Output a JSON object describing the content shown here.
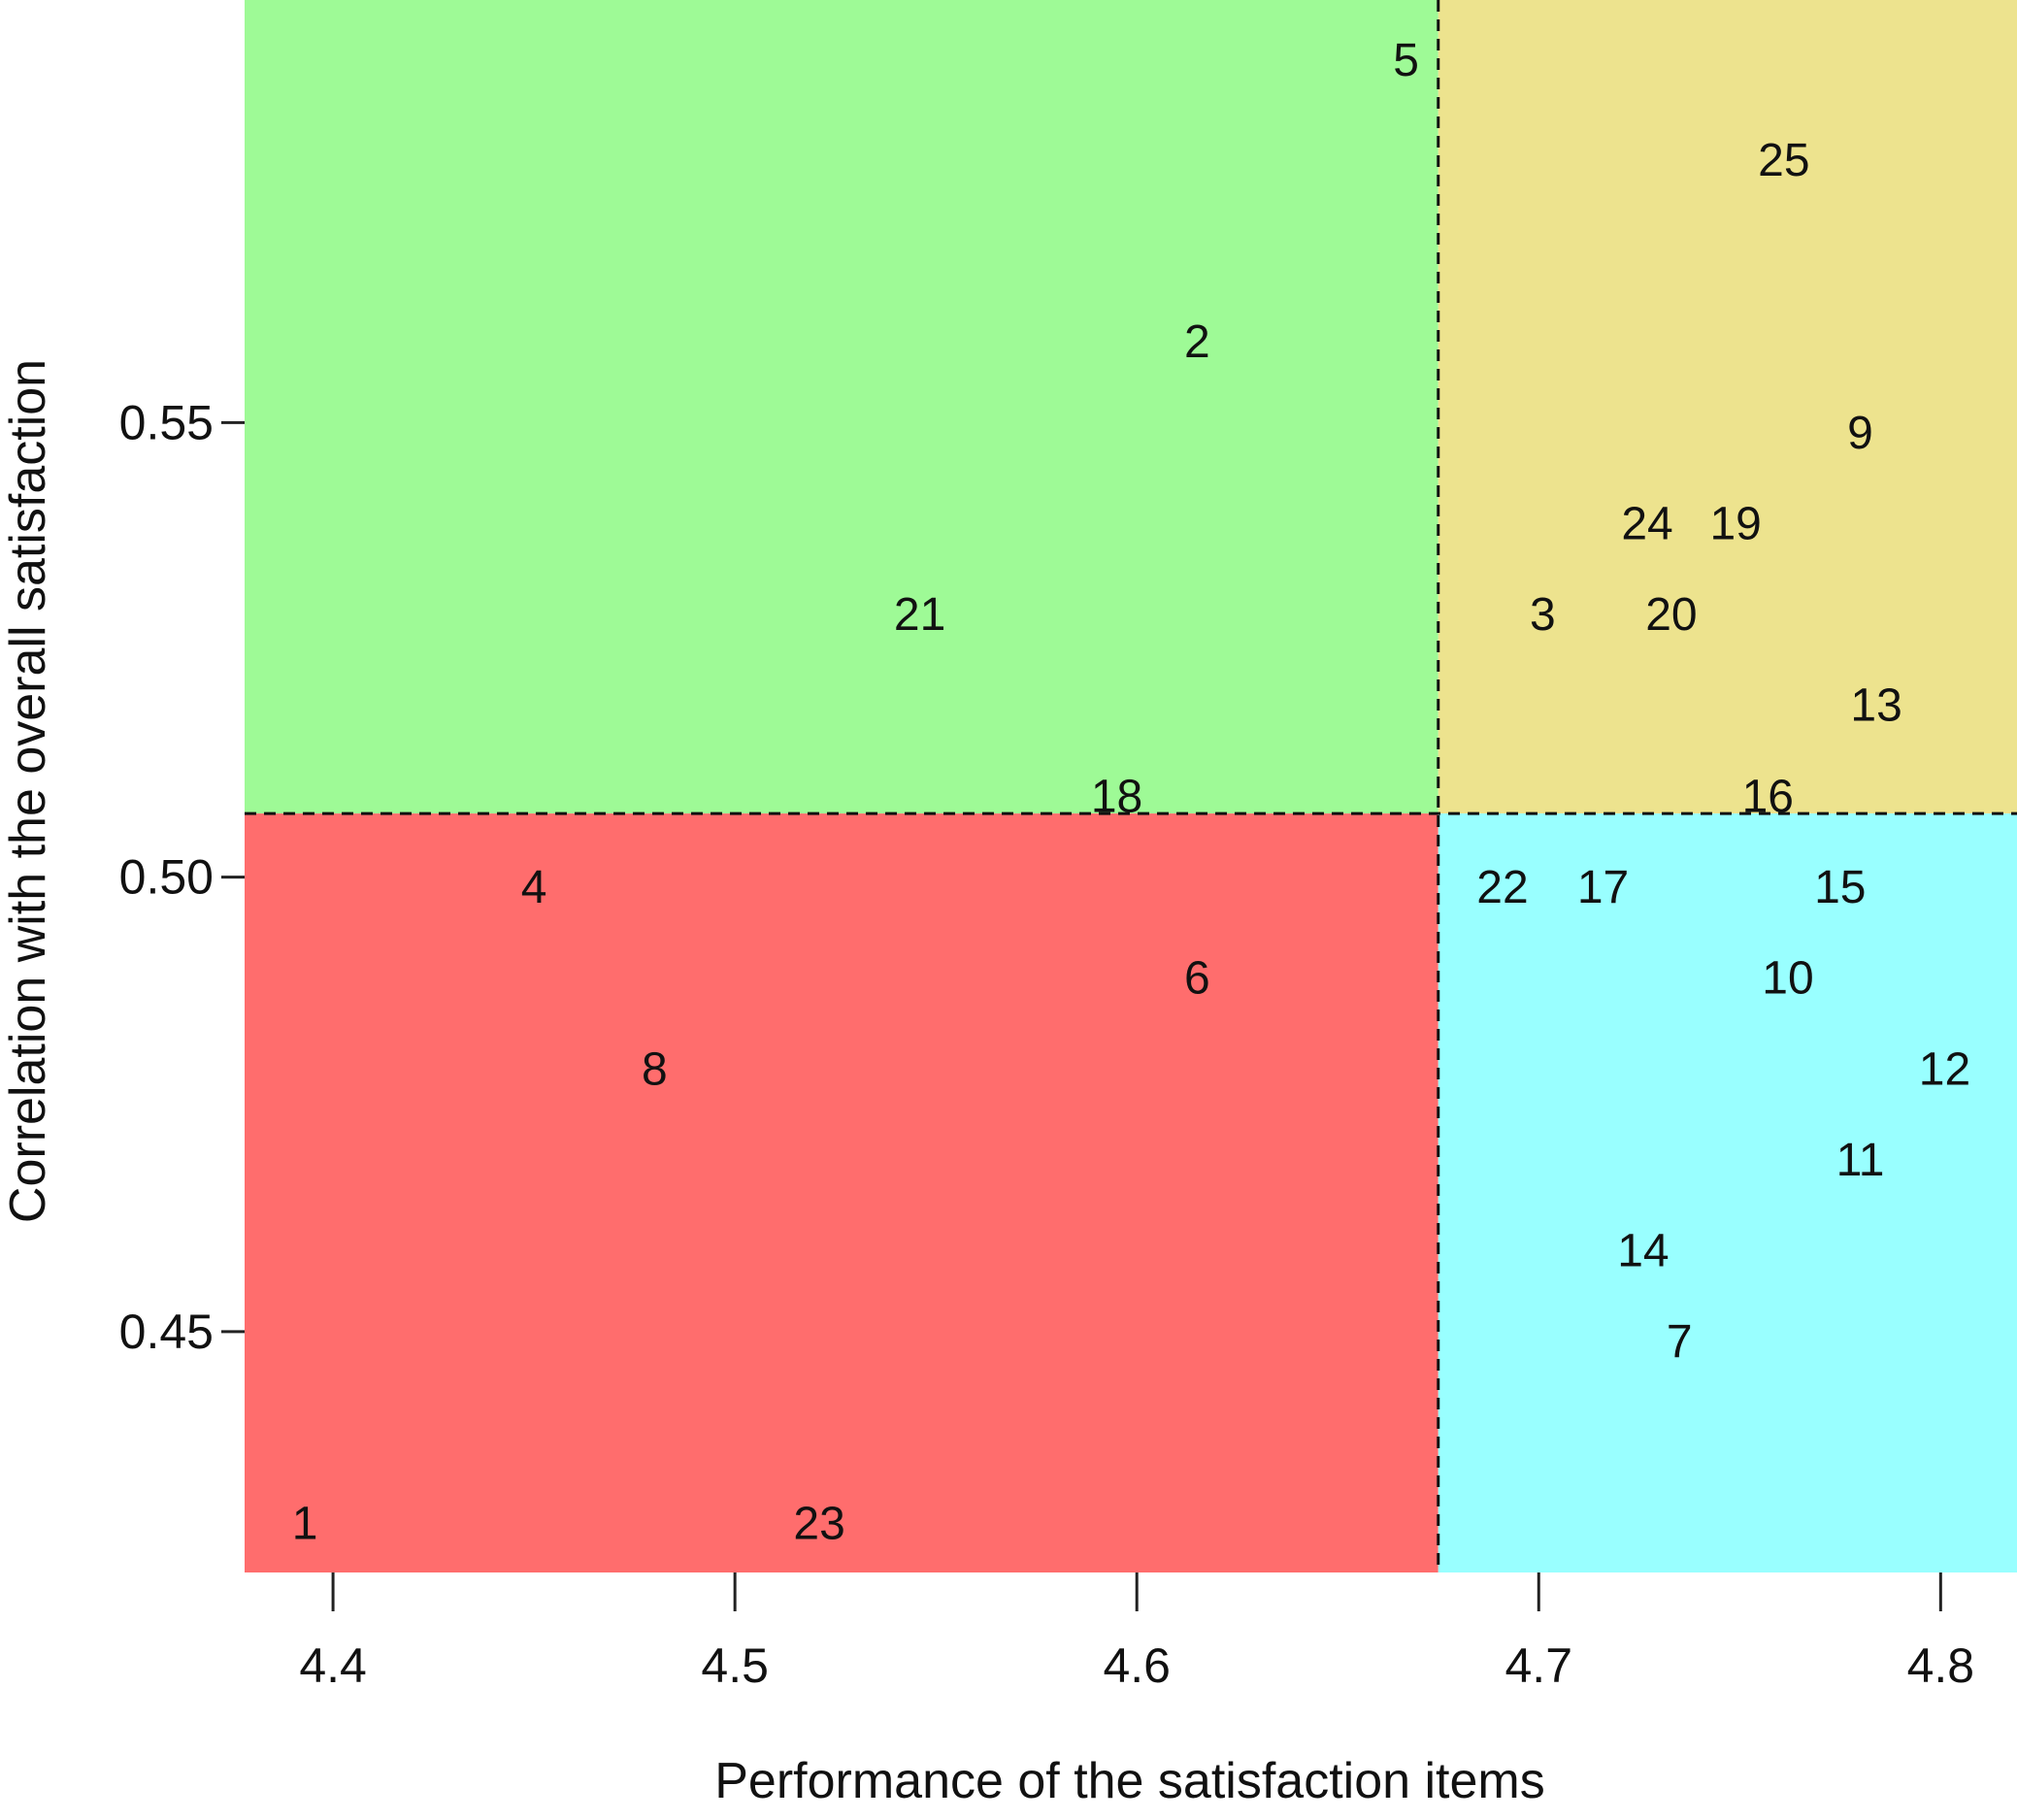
{
  "chart_data": {
    "type": "scatter",
    "xlabel": "Performance of the satisfaction items",
    "ylabel": "Correlation with the overall satisfaction",
    "xlim": [
      4.378,
      4.819
    ],
    "ylim": [
      0.4235,
      0.5965
    ],
    "x_ticks": [
      4.4,
      4.5,
      4.6,
      4.7,
      4.8
    ],
    "x_tick_labels": [
      "4.4",
      "4.5",
      "4.6",
      "4.7",
      "4.8"
    ],
    "y_ticks": [
      0.45,
      0.5,
      0.55
    ],
    "y_tick_labels": [
      "0.45",
      "0.50",
      "0.55"
    ],
    "x_divider": 4.675,
    "y_divider": 0.507,
    "grid": false,
    "quadrant_colors": {
      "top_left": "#9efa96",
      "top_right": "#ede38e",
      "bottom_left": "#ff6d6d",
      "bottom_right": "#99ffff"
    },
    "points": [
      {
        "label": "1",
        "x": 4.393,
        "y": 0.429
      },
      {
        "label": "2",
        "x": 4.615,
        "y": 0.559
      },
      {
        "label": "3",
        "x": 4.701,
        "y": 0.529
      },
      {
        "label": "4",
        "x": 4.45,
        "y": 0.499
      },
      {
        "label": "5",
        "x": 4.667,
        "y": 0.59
      },
      {
        "label": "6",
        "x": 4.615,
        "y": 0.489
      },
      {
        "label": "7",
        "x": 4.735,
        "y": 0.449
      },
      {
        "label": "8",
        "x": 4.48,
        "y": 0.479
      },
      {
        "label": "9",
        "x": 4.78,
        "y": 0.549
      },
      {
        "label": "10",
        "x": 4.762,
        "y": 0.489
      },
      {
        "label": "11",
        "x": 4.78,
        "y": 0.469
      },
      {
        "label": "12",
        "x": 4.801,
        "y": 0.479
      },
      {
        "label": "13",
        "x": 4.784,
        "y": 0.519
      },
      {
        "label": "14",
        "x": 4.726,
        "y": 0.459
      },
      {
        "label": "15",
        "x": 4.775,
        "y": 0.499
      },
      {
        "label": "16",
        "x": 4.757,
        "y": 0.509
      },
      {
        "label": "17",
        "x": 4.716,
        "y": 0.499
      },
      {
        "label": "18",
        "x": 4.595,
        "y": 0.509
      },
      {
        "label": "19",
        "x": 4.749,
        "y": 0.539
      },
      {
        "label": "20",
        "x": 4.733,
        "y": 0.529
      },
      {
        "label": "21",
        "x": 4.546,
        "y": 0.529
      },
      {
        "label": "22",
        "x": 4.691,
        "y": 0.499
      },
      {
        "label": "23",
        "x": 4.521,
        "y": 0.429
      },
      {
        "label": "24",
        "x": 4.727,
        "y": 0.539
      },
      {
        "label": "25",
        "x": 4.761,
        "y": 0.579
      }
    ]
  }
}
